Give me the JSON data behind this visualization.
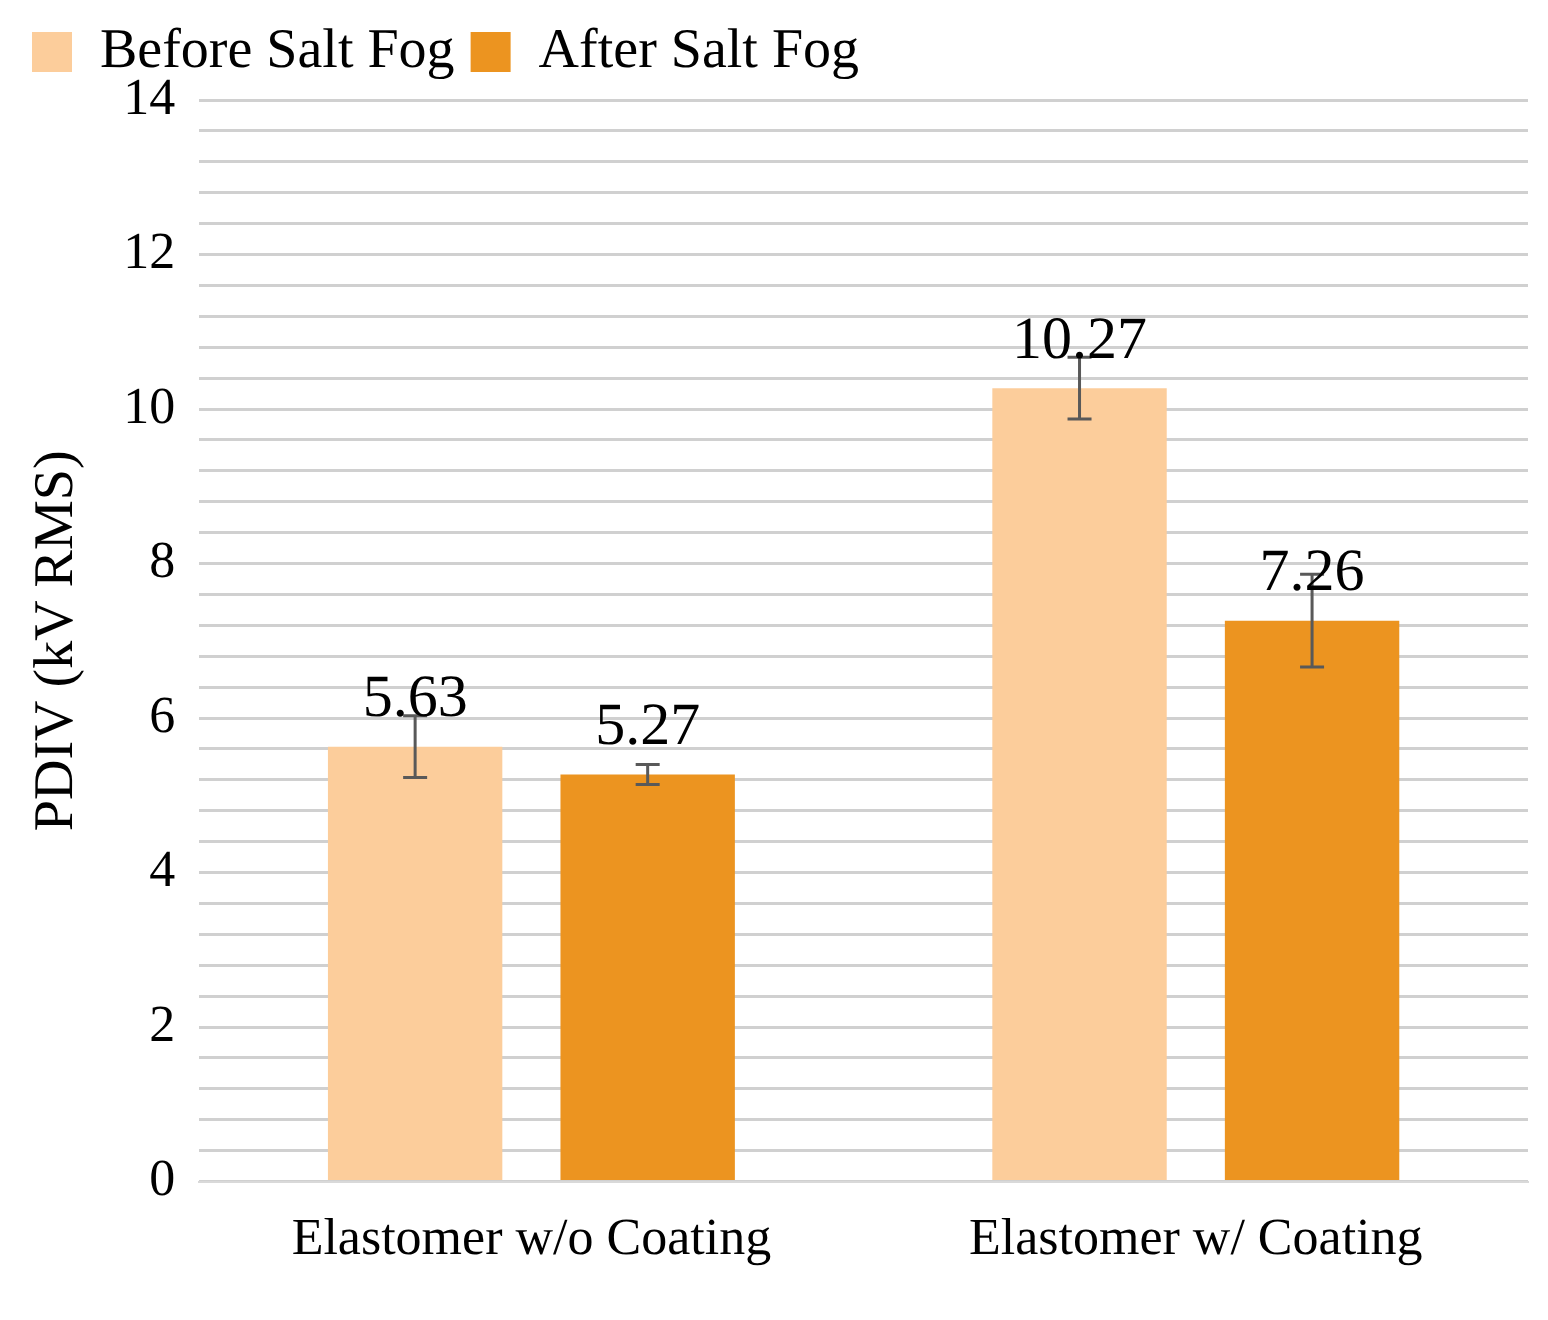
{
  "chart_data": {
    "type": "bar",
    "ylabel": "PDIV (kV RMS)",
    "categories": [
      "Elastomer w/o Coating",
      "Elastomer w/ Coating"
    ],
    "series": [
      {
        "name": "Before Salt Fog",
        "color": "#fccd9b",
        "values": [
          5.63,
          10.27
        ],
        "errors": [
          0.4,
          0.4
        ]
      },
      {
        "name": "After Salt Fog",
        "color": "#ec9420",
        "values": [
          5.27,
          7.26
        ],
        "errors": [
          0.13,
          0.6
        ]
      }
    ],
    "ylim": [
      0,
      14
    ],
    "yticks": [
      0,
      {
        "value": 0.4,
        "label": null
      },
      {
        "value": 0.8,
        "label": null
      },
      {
        "value": 1.2,
        "label": null
      },
      {
        "value": 1.6,
        "label": null
      },
      2,
      {
        "value": 2.4,
        "label": null
      },
      {
        "value": 2.8,
        "label": null
      },
      {
        "value": 3.2,
        "label": null
      },
      {
        "value": 3.6,
        "label": null
      },
      4,
      {
        "value": 4.4,
        "label": null
      },
      {
        "value": 4.8,
        "label": null
      },
      {
        "value": 5.2,
        "label": null
      },
      {
        "value": 5.6,
        "label": null
      },
      6,
      {
        "value": 6.4,
        "label": null
      },
      {
        "value": 6.8,
        "label": null
      },
      {
        "value": 7.2,
        "label": null
      },
      {
        "value": 7.6,
        "label": null
      },
      8,
      {
        "value": 8.4,
        "label": null
      },
      {
        "value": 8.8,
        "label": null
      },
      {
        "value": 9.2,
        "label": null
      },
      {
        "value": 9.6,
        "label": null
      },
      10,
      {
        "value": 10.4,
        "label": null
      },
      {
        "value": 10.8,
        "label": null
      },
      {
        "value": 11.2,
        "label": null
      },
      {
        "value": 11.6,
        "label": null
      },
      12,
      {
        "value": 12.4,
        "label": null
      },
      {
        "value": 12.8,
        "label": null
      },
      {
        "value": 13.2,
        "label": null
      },
      {
        "value": 13.6,
        "label": null
      },
      14
    ],
    "grid": "y",
    "legend": "top left",
    "data_labels": true
  }
}
